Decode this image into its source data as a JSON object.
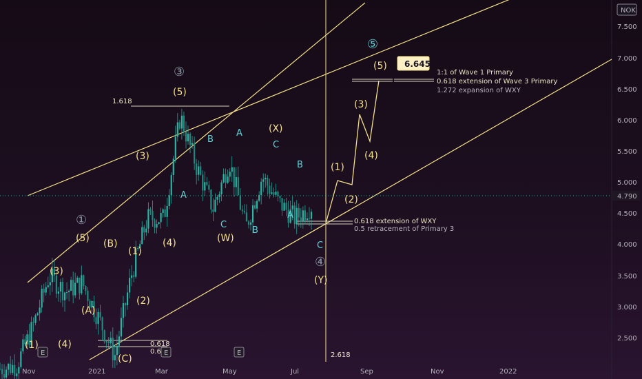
{
  "currency": "NOK",
  "price_label": "4.790",
  "target_label": "6.645",
  "y_ticks": [
    "7.500",
    "7.000",
    "6.500",
    "6.000",
    "5.500",
    "5.000",
    "4.500",
    "4.000",
    "3.500",
    "3.000",
    "2.500"
  ],
  "x_ticks": [
    "Nov",
    "2021",
    "Mar",
    "May",
    "Jul",
    "Sep",
    "Nov",
    "2022"
  ],
  "colors": {
    "bull": "#26a69a",
    "bear": "#26a69a",
    "yellow": "#f5e08a",
    "cyan": "#5fd3d7",
    "gray_circle": "#8a97a6",
    "price_line": "#3aa69b"
  },
  "chart_data": {
    "type": "candlestick",
    "currency": "NOK",
    "ylim": [
      2.2,
      7.9
    ],
    "x_labels": [
      "Nov",
      "2021",
      "Mar",
      "May",
      "Jul",
      "Sep",
      "Nov",
      "2022"
    ],
    "last_price": 4.79,
    "target": 6.645,
    "close_path": [
      {
        "t": "Oct 2020",
        "v": 2.25
      },
      {
        "t": "Nov 2020",
        "v": 2.3
      },
      {
        "t": "Nov 2020 b",
        "v": 2.9
      },
      {
        "t": "Dec 2020",
        "v": 3.7
      },
      {
        "t": "Dec 2020 b",
        "v": 3.45
      },
      {
        "t": "Jan 2021",
        "v": 3.6
      },
      {
        "t": "Jan 2021 b",
        "v": 3.05
      },
      {
        "t": "Feb 2021",
        "v": 2.45
      },
      {
        "t": "Feb 2021 b",
        "v": 3.7
      },
      {
        "t": "Feb 2021 c",
        "v": 4.6
      },
      {
        "t": "Mar 2021",
        "v": 4.6
      },
      {
        "t": "Mar 2021 b",
        "v": 6.2
      },
      {
        "t": "Apr 2021",
        "v": 5.4
      },
      {
        "t": "Apr 2021 b",
        "v": 4.75
      },
      {
        "t": "May 2021",
        "v": 5.5
      },
      {
        "t": "May 2021 b",
        "v": 4.45
      },
      {
        "t": "Jun 2021",
        "v": 5.25
      },
      {
        "t": "Jun 2021 b",
        "v": 4.85
      },
      {
        "t": "Jul 2021",
        "v": 4.6
      },
      {
        "t": "Jul 2021 b",
        "v": 4.79
      }
    ],
    "projection": [
      {
        "t": "Jul 2021",
        "v": 4.35
      },
      {
        "t": "Aug 2021",
        "v": 5.0
      },
      {
        "t": "Aug 2021 b",
        "v": 4.95
      },
      {
        "t": "Sep 2021",
        "v": 6.1
      },
      {
        "t": "Sep 2021 b",
        "v": 5.75
      },
      {
        "t": "Oct 2021",
        "v": 6.645
      }
    ],
    "channels": [
      {
        "name": "upper",
        "from": [
          0,
          3.8
        ],
        "to": [
          1,
          7.9
        ]
      },
      {
        "name": "middle",
        "from": [
          0,
          4.8
        ],
        "to": [
          1,
          7.9
        ]
      },
      {
        "name": "lower",
        "from": [
          0,
          2.2
        ],
        "to": [
          1,
          7.0
        ]
      }
    ],
    "labels": {
      "primary": [
        "①",
        "③",
        "④",
        "⑤"
      ],
      "intermediate": [
        "(1)",
        "(2)",
        "(3)",
        "(4)",
        "(5)",
        "(A)",
        "(B)",
        "(C)",
        "(W)",
        "(X)",
        "(Y)"
      ],
      "minor": [
        "A",
        "B",
        "C"
      ]
    }
  },
  "annotations": {
    "fib_1618": "1.618",
    "fib_0618_a": "0.618",
    "fib_0618_b": "0.6",
    "fib_2618": "2.618",
    "wave1_eq": "1:1 of Wave 1 Primary",
    "wave3_ext": "0.618 extension of Wave 3 Primary",
    "wxy_exp": "1.272 expansion of WXY",
    "wxy_ext": "0.618 extension of WXY",
    "primary3_ret": "0.5 retracement of Primary 3",
    "event_marker": "E"
  },
  "wave_labels": {
    "c1": "①",
    "c3": "③",
    "c4": "④",
    "c5": "⑤",
    "w1": "(1)",
    "w2": "(2)",
    "w3": "(3)",
    "w4": "(4)",
    "w5": "(5)",
    "wA": "(A)",
    "wB": "(B)",
    "wC": "(C)",
    "wW": "(W)",
    "wX": "(X)",
    "wY": "(Y)",
    "a": "A",
    "b": "B",
    "c": "C"
  }
}
